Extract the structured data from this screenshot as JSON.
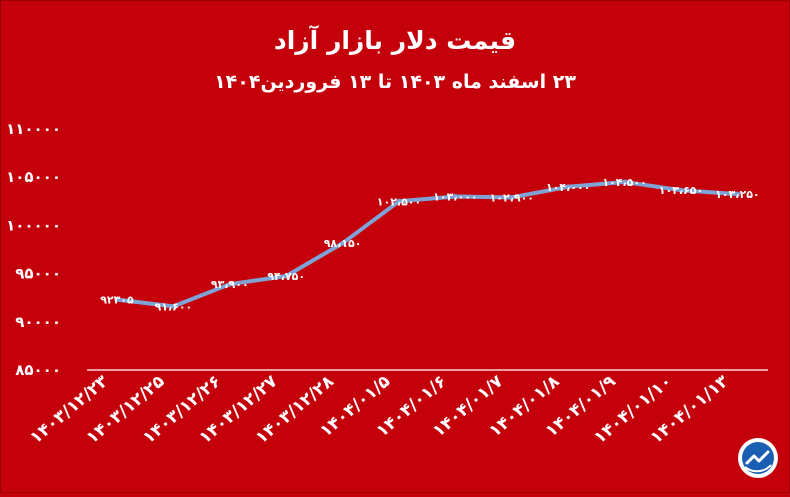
{
  "chart_data": {
    "type": "line",
    "title": "قیمت دلار بازار آزاد",
    "subtitle": "۲۳ اسفند ماه ۱۴۰۳ تا ۱۳ فروردین۱۴۰۴",
    "categories": [
      "۱۴۰۳/۱۲/۲۳",
      "۱۴۰۳/۱۲/۲۵",
      "۱۴۰۳/۱۲/۲۶",
      "۱۴۰۳/۱۲/۲۷",
      "۱۴۰۳/۱۲/۲۸",
      "۱۴۰۴/۰۱/۵",
      "۱۴۰۴/۰۱/۶",
      "۱۴۰۴/۰۱/۷",
      "۱۴۰۴/۰۱/۸",
      "۱۴۰۴/۰۱/۹",
      "۱۴۰۴/۰۱/۱۰",
      "۱۴۰۴/۰۱/۱۳"
    ],
    "values": [
      92305,
      91600,
      93900,
      94750,
      98150,
      102500,
      103000,
      102900,
      104000,
      104500,
      103650,
      103250
    ],
    "data_labels": [
      "۹۲۳۰۵",
      "۹۱،۶۰۰",
      "۹۳،۹۰۰",
      "۹۴،۷۵۰",
      "۹۸،۱۵۰",
      "۱۰۲،۵۰۰",
      "۱۰۳،۰۰۰",
      "۱۰۲،۹۰۰",
      "۱۰۴،۰۰۰",
      "۱۰۴،۵۰۰",
      "۱۰۳،۶۵۰",
      "۱۰۳،۲۵۰"
    ],
    "ylim": [
      85000,
      110000
    ],
    "yticks": [
      85000,
      90000,
      95000,
      100000,
      105000,
      110000
    ],
    "ytick_labels": [
      "۸۵۰۰۰",
      "۹۰۰۰۰",
      "۹۵۰۰۰",
      "۱۰۰۰۰۰",
      "۱۰۵۰۰۰",
      "۱۱۰۰۰۰"
    ],
    "grid": false,
    "xlabel": "",
    "ylabel": ""
  },
  "colors": {
    "background": "#c4000b",
    "line": "#7fa3d6",
    "text": "#ffffff",
    "axis": "#ffffff"
  },
  "logo": {
    "icon": "trend-circle-logo-icon"
  }
}
